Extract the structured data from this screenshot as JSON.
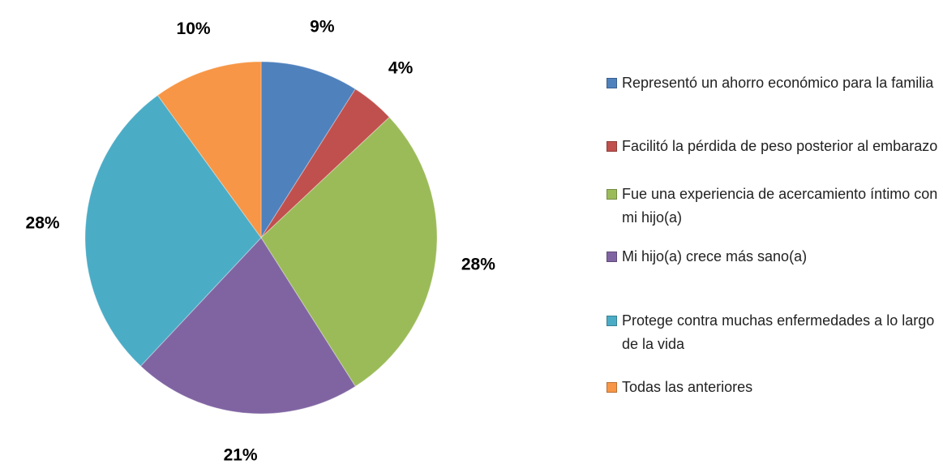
{
  "chart_data": {
    "type": "pie",
    "categories": [
      "Representó un ahorro económico para la familia",
      "Facilitó la pérdida de peso posterior al embarazo",
      "Fue una experiencia de acercamiento íntimo con mi hijo(a)",
      "Mi hijo(a) crece más sano(a)",
      "Protege contra muchas enfermedades a lo largo de la  vida",
      "Todas las anteriores"
    ],
    "values": [
      9,
      4,
      28,
      21,
      28,
      10
    ],
    "value_labels": [
      "9%",
      "4%",
      "28%",
      "21%",
      "28%",
      "10%"
    ],
    "colors": [
      "#4f81bd",
      "#c0504d",
      "#9bbb59",
      "#8064a2",
      "#4bacc6",
      "#f79646"
    ],
    "legend": "right"
  }
}
